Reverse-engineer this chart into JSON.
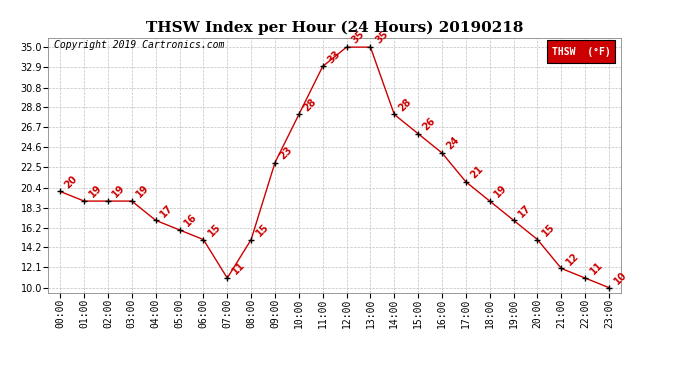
{
  "title": "THSW Index per Hour (24 Hours) 20190218",
  "copyright": "Copyright 2019 Cartronics.com",
  "legend_label": "THSW  (°F)",
  "hours": [
    0,
    1,
    2,
    3,
    4,
    5,
    6,
    7,
    8,
    9,
    10,
    11,
    12,
    13,
    14,
    15,
    16,
    17,
    18,
    19,
    20,
    21,
    22,
    23
  ],
  "values": [
    20,
    19,
    19,
    19,
    17,
    16,
    15,
    11,
    15,
    23,
    28,
    33,
    35,
    35,
    28,
    26,
    24,
    21,
    19,
    17,
    15,
    12,
    11,
    10
  ],
  "line_color": "#cc0000",
  "marker_color": "#000000",
  "label_color": "#cc0000",
  "background_color": "#ffffff",
  "grid_color": "#c0c0c0",
  "yticks": [
    10.0,
    12.1,
    14.2,
    16.2,
    18.3,
    20.4,
    22.5,
    24.6,
    26.7,
    28.8,
    30.8,
    32.9,
    35.0
  ],
  "ylim": [
    9.5,
    36.0
  ],
  "xlim": [
    -0.5,
    23.5
  ],
  "title_fontsize": 11,
  "copyright_fontsize": 7,
  "label_fontsize": 7,
  "tick_fontsize": 7,
  "legend_bg": "#cc0000",
  "legend_text_color": "#ffffff",
  "fig_width": 6.9,
  "fig_height": 3.75,
  "dpi": 100
}
